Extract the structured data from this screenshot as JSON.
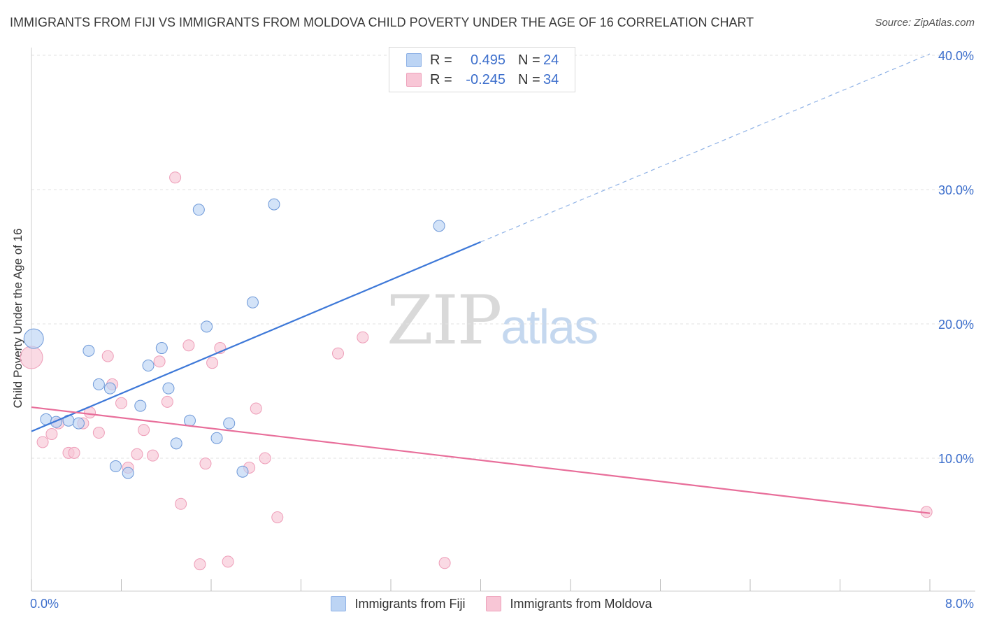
{
  "title": "IMMIGRANTS FROM FIJI VS IMMIGRANTS FROM MOLDOVA CHILD POVERTY UNDER THE AGE OF 16 CORRELATION CHART",
  "source": "Source: ZipAtlas.com",
  "watermark": {
    "zip": "ZIP",
    "atlas": "atlas"
  },
  "legend": {
    "rows": [
      {
        "r_label": "R =",
        "r_value": "0.495",
        "n_label": "N =",
        "n_value": "24",
        "color": "#a9c8f0"
      },
      {
        "r_label": "R =",
        "r_value": "-0.245",
        "n_label": "N =",
        "n_value": "34",
        "color": "#f7bcd0"
      }
    ]
  },
  "bottom_legend": [
    "Immigrants from Fiji",
    "Immigrants from Moldova"
  ],
  "chart_data": {
    "type": "scatter",
    "ylabel": "Child Poverty Under the Age of 16",
    "x_tick_labels": [
      "0.0%",
      "8.0%"
    ],
    "y_tick_labels": [
      "10.0%",
      "20.0%",
      "30.0%",
      "40.0%"
    ],
    "xlim": [
      0,
      8
    ],
    "ylim": [
      0,
      41
    ],
    "y_ticks": [
      10,
      20,
      30,
      40
    ],
    "grid": true,
    "colors": {
      "fiji": "#3d78d8",
      "moldova": "#e86e9a",
      "fiji_fill": "#bcd4f4",
      "moldova_fill": "#f8c6d6"
    },
    "series": [
      {
        "name": "Immigrants from Fiji",
        "trend": {
          "x": [
            0,
            4.0
          ],
          "y": [
            12.0,
            26.1
          ],
          "dashed_to": [
            8.0,
            40.1
          ]
        },
        "points": [
          {
            "x": 0.02,
            "y": 18.9,
            "big": true
          },
          {
            "x": 0.13,
            "y": 12.9
          },
          {
            "x": 0.22,
            "y": 12.7
          },
          {
            "x": 0.33,
            "y": 12.8
          },
          {
            "x": 0.42,
            "y": 12.6
          },
          {
            "x": 0.51,
            "y": 18.0
          },
          {
            "x": 0.6,
            "y": 15.5
          },
          {
            "x": 0.7,
            "y": 15.2
          },
          {
            "x": 0.75,
            "y": 9.4
          },
          {
            "x": 0.86,
            "y": 8.9
          },
          {
            "x": 0.97,
            "y": 13.9
          },
          {
            "x": 1.04,
            "y": 16.9
          },
          {
            "x": 1.16,
            "y": 18.2
          },
          {
            "x": 1.22,
            "y": 15.2
          },
          {
            "x": 1.29,
            "y": 11.1
          },
          {
            "x": 1.41,
            "y": 12.8
          },
          {
            "x": 1.49,
            "y": 28.5
          },
          {
            "x": 1.56,
            "y": 19.8
          },
          {
            "x": 1.65,
            "y": 11.5
          },
          {
            "x": 1.76,
            "y": 12.6
          },
          {
            "x": 1.88,
            "y": 9.0
          },
          {
            "x": 1.97,
            "y": 21.6
          },
          {
            "x": 2.16,
            "y": 28.9
          },
          {
            "x": 3.63,
            "y": 27.3
          }
        ]
      },
      {
        "name": "Immigrants from Moldova",
        "trend": {
          "x": [
            0,
            8.0
          ],
          "y": [
            13.8,
            5.9
          ]
        },
        "points": [
          {
            "x": 0.0,
            "y": 17.5,
            "big": true
          },
          {
            "x": 0.1,
            "y": 11.2
          },
          {
            "x": 0.18,
            "y": 11.8
          },
          {
            "x": 0.24,
            "y": 12.6
          },
          {
            "x": 0.33,
            "y": 10.4
          },
          {
            "x": 0.38,
            "y": 10.4
          },
          {
            "x": 0.46,
            "y": 12.6
          },
          {
            "x": 0.52,
            "y": 13.4
          },
          {
            "x": 0.6,
            "y": 11.9
          },
          {
            "x": 0.68,
            "y": 17.6
          },
          {
            "x": 0.72,
            "y": 15.5
          },
          {
            "x": 0.8,
            "y": 14.1
          },
          {
            "x": 0.86,
            "y": 9.3
          },
          {
            "x": 0.94,
            "y": 10.3
          },
          {
            "x": 1.0,
            "y": 12.1
          },
          {
            "x": 1.08,
            "y": 10.2
          },
          {
            "x": 1.14,
            "y": 17.2
          },
          {
            "x": 1.21,
            "y": 14.2
          },
          {
            "x": 1.28,
            "y": 30.9
          },
          {
            "x": 1.33,
            "y": 6.6
          },
          {
            "x": 1.4,
            "y": 18.4
          },
          {
            "x": 1.5,
            "y": 2.1
          },
          {
            "x": 1.55,
            "y": 9.6
          },
          {
            "x": 1.61,
            "y": 17.1
          },
          {
            "x": 1.68,
            "y": 18.2
          },
          {
            "x": 1.75,
            "y": 2.3
          },
          {
            "x": 1.94,
            "y": 9.3
          },
          {
            "x": 2.0,
            "y": 13.7
          },
          {
            "x": 2.08,
            "y": 10.0
          },
          {
            "x": 2.19,
            "y": 5.6
          },
          {
            "x": 2.73,
            "y": 17.8
          },
          {
            "x": 2.95,
            "y": 19.0
          },
          {
            "x": 3.68,
            "y": 2.2
          },
          {
            "x": 7.97,
            "y": 6.0
          }
        ]
      }
    ]
  }
}
